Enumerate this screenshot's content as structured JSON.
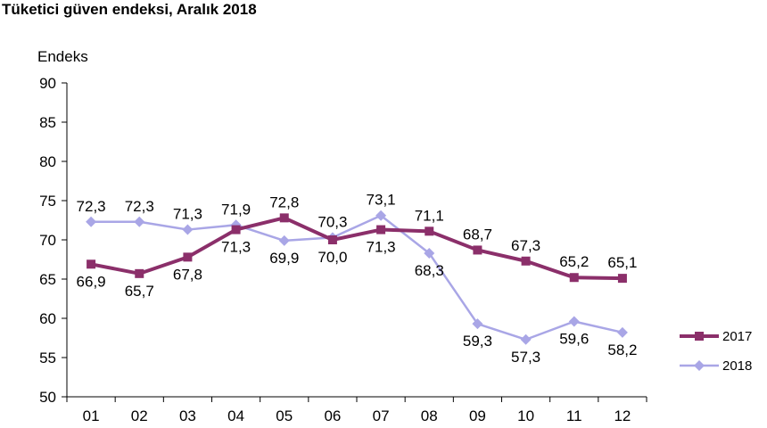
{
  "chart_data": {
    "type": "line",
    "title": "Tüketici güven endeksi, Aralık 2018",
    "ylabel": "Endeks",
    "xlabel": "",
    "categories": [
      "01",
      "02",
      "03",
      "04",
      "05",
      "06",
      "07",
      "08",
      "09",
      "10",
      "11",
      "12"
    ],
    "ylim": [
      50,
      90
    ],
    "yticks": [
      50,
      55,
      60,
      65,
      70,
      75,
      80,
      85,
      90
    ],
    "grid": false,
    "legend_position": "right",
    "series": [
      {
        "name": "2017",
        "color": "#8B2F6A",
        "marker": "square",
        "values": [
          66.9,
          65.7,
          67.8,
          71.3,
          72.8,
          70.0,
          71.3,
          71.1,
          68.7,
          67.3,
          65.2,
          65.1
        ],
        "labels": [
          "66,9",
          "65,7",
          "67,8",
          "71,3",
          "72,8",
          "70,0",
          "71,3",
          "71,1",
          "68,7",
          "67,3",
          "65,2",
          "65,1"
        ]
      },
      {
        "name": "2018",
        "color": "#A9A6E6",
        "marker": "diamond",
        "values": [
          72.3,
          72.3,
          71.3,
          71.9,
          69.9,
          70.3,
          73.1,
          68.3,
          59.3,
          57.3,
          59.6,
          58.2
        ],
        "labels": [
          "72,3",
          "72,3",
          "71,3",
          "71,9",
          "69,9",
          "70,3",
          "73,1",
          "68,3",
          "59,3",
          "57,3",
          "59,6",
          "58,2"
        ]
      }
    ]
  }
}
